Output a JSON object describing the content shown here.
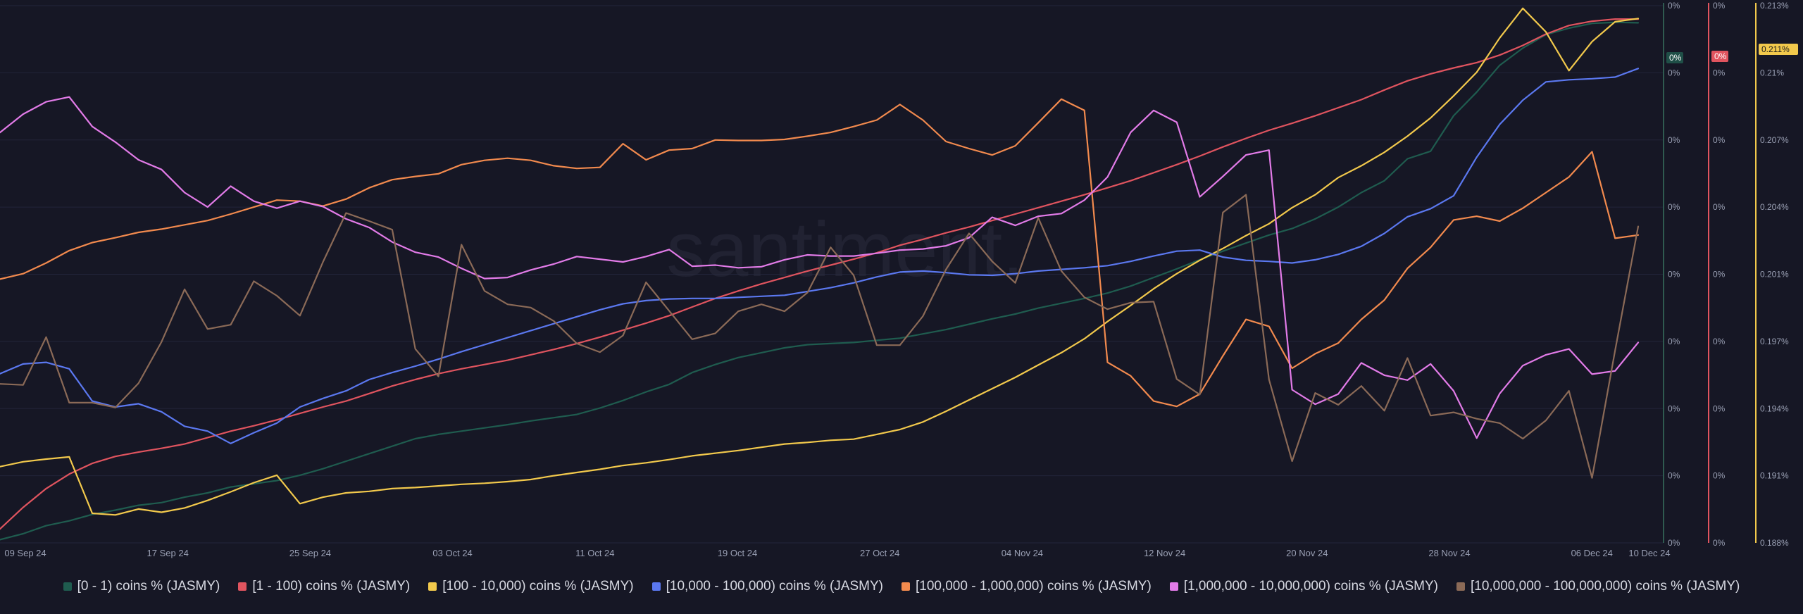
{
  "watermark": "santiment.",
  "chart_data": {
    "type": "line",
    "x_labels": [
      "09 Sep 24",
      "17 Sep 24",
      "25 Sep 24",
      "03 Oct 24",
      "11 Oct 24",
      "19 Oct 24",
      "27 Oct 24",
      "04 Nov 24",
      "12 Nov 24",
      "20 Nov 24",
      "28 Nov 24",
      "06 Dec 24",
      "10 Dec 24"
    ],
    "x_range": [
      "2024-09-09",
      "2024-12-10"
    ],
    "axes": [
      {
        "id": "a1",
        "ticks": [
          "0%",
          "0%",
          "0%",
          "0%",
          "0%",
          "0%",
          "0%",
          "0%",
          "0%"
        ],
        "badge": "0%",
        "badge_color": "#1f4f47",
        "color": "#2f5a50"
      },
      {
        "id": "a2",
        "ticks": [
          "0%",
          "0%",
          "0%",
          "0%",
          "0%",
          "0%",
          "0%",
          "0%",
          "0%"
        ],
        "badge": "0%",
        "badge_color": "#e0545f",
        "color": "#e0545f"
      },
      {
        "id": "a3",
        "ticks": [
          "0.213%",
          "0.21%",
          "0.207%",
          "0.204%",
          "0.201%",
          "0.197%",
          "0.194%",
          "0.191%",
          "0.188%"
        ],
        "badge": "0.211%",
        "badge_color": "#f2c94c",
        "color": "#f2c94c",
        "ylim": [
          0.188,
          0.213
        ]
      }
    ],
    "grid": true,
    "legend_position": "bottom",
    "series": [
      {
        "name": "[0 - 1) coins % (JASMY)",
        "color": "#1f5c4f",
        "axis": "a1",
        "values": [
          0.6,
          1.7,
          3.2,
          4.1,
          5.3,
          6.1,
          7,
          7.5,
          8.5,
          9.3,
          10.4,
          11,
          11.6,
          12.6,
          13.8,
          15.2,
          16.6,
          18,
          19.4,
          20.2,
          20.8,
          21.4,
          22,
          22.7,
          23.3,
          23.9,
          25.1,
          26.5,
          28.1,
          29.5,
          31.7,
          33.2,
          34.5,
          35.4,
          36.3,
          36.9,
          37.1,
          37.3,
          37.7,
          38.1,
          38.9,
          39.7,
          40.7,
          41.7,
          42.6,
          43.7,
          44.6,
          45.5,
          46.5,
          47.8,
          49.4,
          51,
          52.7,
          54.3,
          55.8,
          57.3,
          58.5,
          60.3,
          62.5,
          65.2,
          67.4,
          71.5,
          72.9,
          79.5,
          83.9,
          88.9,
          92.1,
          94.6,
          95.8,
          96.7,
          96.9,
          96.8
        ]
      },
      {
        "name": "[1 - 100) coins % (JASMY)",
        "color": "#e0545f",
        "axis": "a2",
        "values": [
          2.6,
          6.6,
          10.1,
          12.8,
          14.8,
          16.1,
          16.9,
          17.6,
          18.4,
          19.6,
          20.8,
          21.8,
          22.9,
          24.1,
          25.3,
          26.4,
          27.8,
          29.2,
          30.4,
          31.5,
          32.4,
          33.2,
          34,
          35,
          36,
          37.1,
          38.3,
          39.6,
          40.9,
          42.3,
          43.9,
          45.5,
          46.9,
          48.2,
          49.4,
          50.6,
          51.7,
          52.8,
          54,
          55.4,
          56.5,
          57.7,
          58.8,
          60,
          61.2,
          62.4,
          63.6,
          64.8,
          66.1,
          67.4,
          68.9,
          70.4,
          72,
          73.7,
          75.3,
          76.8,
          78.1,
          79.5,
          81,
          82.5,
          84.3,
          86,
          87.3,
          88.4,
          89.4,
          90.8,
          92.6,
          94.7,
          96.3,
          97.1,
          97.5,
          97.5
        ]
      },
      {
        "name": "[100 - 10,000) coins % (JASMY)",
        "color": "#f2c94c",
        "axis": "a3",
        "values": [
          14.2,
          15.1,
          15.6,
          16,
          5.5,
          5.2,
          6.3,
          5.7,
          6.5,
          7.9,
          9.5,
          11.2,
          12.6,
          7.3,
          8.5,
          9.3,
          9.6,
          10.1,
          10.3,
          10.6,
          10.9,
          11.1,
          11.4,
          11.8,
          12.5,
          13.1,
          13.7,
          14.4,
          14.9,
          15.5,
          16.2,
          16.7,
          17.2,
          17.8,
          18.4,
          18.7,
          19.1,
          19.3,
          20.2,
          21.1,
          22.5,
          24.5,
          26.6,
          28.7,
          30.8,
          33.1,
          35.4,
          38,
          41.2,
          44.2,
          47.3,
          50.1,
          52.6,
          54.8,
          57.2,
          59.4,
          62.4,
          64.8,
          68,
          70.2,
          72.7,
          75.7,
          79.1,
          83.2,
          87.6,
          94,
          99.5,
          95.1,
          87.9,
          93.3,
          97,
          97.6
        ]
      },
      {
        "name": "[10,000 - 100,000) coins % (JASMY)",
        "color": "#5b78f0",
        "axis": "a1",
        "values": [
          31.5,
          33.3,
          33.6,
          32.4,
          26.4,
          25.3,
          25.9,
          24.4,
          21.7,
          20.8,
          18.5,
          20.5,
          22.3,
          25.3,
          26.9,
          28.3,
          30.4,
          31.7,
          32.9,
          34.2,
          35.6,
          36.9,
          38.2,
          39.5,
          40.8,
          42.1,
          43.4,
          44.5,
          45.1,
          45.4,
          45.5,
          45.5,
          45.7,
          45.9,
          46.1,
          46.8,
          47.5,
          48.4,
          49.5,
          50.4,
          50.6,
          50.3,
          49.9,
          49.8,
          50.1,
          50.6,
          50.9,
          51.2,
          51.6,
          52.4,
          53.4,
          54.3,
          54.5,
          53.2,
          52.6,
          52.4,
          52.1,
          52.7,
          53.7,
          55.2,
          57.6,
          60.7,
          62.2,
          64.6,
          71.8,
          77.9,
          82.4,
          85.8,
          86.2,
          86.4,
          86.7,
          88.3
        ]
      },
      {
        "name": "[100,000  - 1,000,000) coins % (JASMY)",
        "color": "#f28a4e",
        "axis": "a1",
        "values": [
          49.1,
          50.1,
          52.1,
          54.4,
          55.9,
          56.8,
          57.8,
          58.4,
          59.2,
          60,
          61.2,
          62.5,
          63.8,
          63.6,
          62.7,
          64,
          66.1,
          67.6,
          68.2,
          68.7,
          70.4,
          71.2,
          71.6,
          71.2,
          70.2,
          69.7,
          69.9,
          74.3,
          71.3,
          73.1,
          73.4,
          75,
          74.9,
          74.9,
          75.1,
          75.7,
          76.4,
          77.5,
          78.7,
          81.6,
          78.7,
          74.7,
          73.4,
          72.2,
          73.9,
          78.2,
          82.6,
          80.5,
          33.6,
          31.1,
          26.4,
          25.4,
          27.7,
          34.8,
          41.6,
          40.3,
          32.5,
          35.2,
          37.2,
          41.6,
          45.2,
          51.1,
          55,
          60.1,
          60.8,
          59.9,
          62.3,
          65.2,
          68.1,
          72.8,
          56.7,
          57.3
        ]
      },
      {
        "name": "[1,000,000 - 10,000,000) coins % (JASMY)",
        "color": "#e27be8",
        "axis": "a1",
        "values": [
          76.4,
          79.8,
          82.1,
          83,
          77.5,
          74.6,
          71.3,
          69.5,
          65.2,
          62.5,
          66.4,
          63.6,
          62.3,
          63.6,
          62.6,
          60.3,
          58.7,
          56,
          54.1,
          53.2,
          51.1,
          49.2,
          49.4,
          50.8,
          51.9,
          53.3,
          52.8,
          52.3,
          53.3,
          54.6,
          51.5,
          51.7,
          51.2,
          51.4,
          52.7,
          53.6,
          53.4,
          53.4,
          53.9,
          54.5,
          54.7,
          55.3,
          56.8,
          60.6,
          59.1,
          60.8,
          61.3,
          63.8,
          68.1,
          76.4,
          80.5,
          78.3,
          64.4,
          68.2,
          72.2,
          73.1,
          28.5,
          25.8,
          27.7,
          33.5,
          31.2,
          30.3,
          33.3,
          28.3,
          19.5,
          27.8,
          33,
          35,
          36.1,
          31.4,
          32,
          37.3
        ]
      },
      {
        "name": "[10,000,000 - 100,000,000) coins % (JASMY)",
        "color": "#8b6a57",
        "axis": "a1",
        "values": [
          29.6,
          29.4,
          38.3,
          26.1,
          26.1,
          25.2,
          29.7,
          37.4,
          47.2,
          39.8,
          40.6,
          48.7,
          46,
          42.3,
          52.3,
          61.4,
          59.9,
          58.3,
          36.1,
          31,
          55.5,
          46.9,
          44.4,
          43.8,
          41.3,
          37.1,
          35.5,
          38.6,
          48.5,
          43.2,
          37.9,
          39,
          43.1,
          44.4,
          43.1,
          46.6,
          55,
          49.8,
          36.8,
          36.8,
          42.2,
          50.9,
          57.6,
          52.4,
          48.4,
          60.5,
          50.6,
          45.7,
          43.5,
          44.7,
          44.9,
          30.5,
          27.6,
          61.5,
          64.8,
          30.4,
          15.2,
          27.9,
          25.7,
          29.2,
          24.6,
          34.4,
          23.7,
          24.3,
          23.1,
          22.3,
          19.4,
          22.8,
          28.3,
          12.1,
          35.8,
          58.9
        ]
      }
    ]
  },
  "legend": [
    {
      "label": "[0 - 1) coins % (JASMY)",
      "color": "#1f5c4f"
    },
    {
      "label": "[1 - 100) coins % (JASMY)",
      "color": "#e0545f"
    },
    {
      "label": "[100 - 10,000) coins % (JASMY)",
      "color": "#f2c94c"
    },
    {
      "label": "[10,000 - 100,000) coins % (JASMY)",
      "color": "#5b78f0"
    },
    {
      "label": "[100,000  - 1,000,000) coins % (JASMY)",
      "color": "#f28a4e"
    },
    {
      "label": "[1,000,000 - 10,000,000) coins % (JASMY)",
      "color": "#e27be8"
    },
    {
      "label": "[10,000,000 - 100,000,000) coins % (JASMY)",
      "color": "#8b6a57"
    }
  ]
}
